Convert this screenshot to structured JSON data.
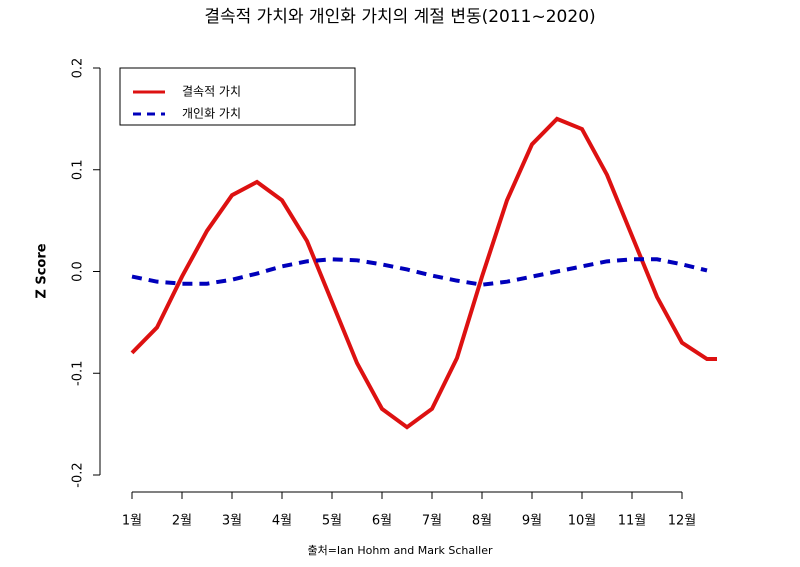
{
  "chart_data": {
    "type": "line",
    "title": "결속적 가치와 개인화 가치의 계절 변동(2011~2020)",
    "ylabel": "Z Score",
    "source": "출처=Ian Hohm and Mark Schaller",
    "x": [
      1,
      1.5,
      2,
      2.5,
      3,
      3.5,
      4,
      4.5,
      5,
      5.5,
      6,
      6.5,
      7,
      7.5,
      8,
      8.5,
      9,
      9.5,
      10,
      10.5,
      11,
      11.5,
      12,
      12.5,
      12.7
    ],
    "series": [
      {
        "name": "결속적 가치",
        "color": "#dd1111",
        "dash": false,
        "values": [
          -0.08,
          -0.055,
          -0.005,
          0.04,
          0.075,
          0.088,
          0.07,
          0.03,
          -0.03,
          -0.09,
          -0.135,
          -0.153,
          -0.135,
          -0.085,
          -0.005,
          0.07,
          0.125,
          0.15,
          0.14,
          0.095,
          0.035,
          -0.025,
          -0.07,
          -0.086,
          -0.086
        ]
      },
      {
        "name": "개인화 가치",
        "color": "#0000bb",
        "dash": true,
        "values": [
          -0.005,
          -0.01,
          -0.012,
          -0.012,
          -0.008,
          -0.002,
          0.005,
          0.01,
          0.012,
          0.011,
          0.007,
          0.002,
          -0.004,
          -0.009,
          -0.013,
          -0.01,
          -0.005,
          0.0,
          0.005,
          0.01,
          0.012,
          0.012,
          0.007,
          0.001,
          null
        ]
      }
    ],
    "xlim": [
      0.5,
      13.2
    ],
    "xticks": [
      {
        "value": 1,
        "label": "1월"
      },
      {
        "value": 2,
        "label": "2월"
      },
      {
        "value": 3,
        "label": "3월"
      },
      {
        "value": 4,
        "label": "4월"
      },
      {
        "value": 5,
        "label": "5월"
      },
      {
        "value": 6,
        "label": "6월"
      },
      {
        "value": 7,
        "label": "7월"
      },
      {
        "value": 8,
        "label": "8월"
      },
      {
        "value": 9,
        "label": "9월"
      },
      {
        "value": 10,
        "label": "10월"
      },
      {
        "value": 11,
        "label": "11월"
      },
      {
        "value": 12,
        "label": "12월"
      }
    ],
    "ylim": [
      -0.2,
      0.2
    ],
    "yticks": [
      -0.2,
      -0.1,
      {
        "value": 0,
        "label": "0.0"
      },
      0.1,
      0.2
    ],
    "legend": "top-left"
  }
}
